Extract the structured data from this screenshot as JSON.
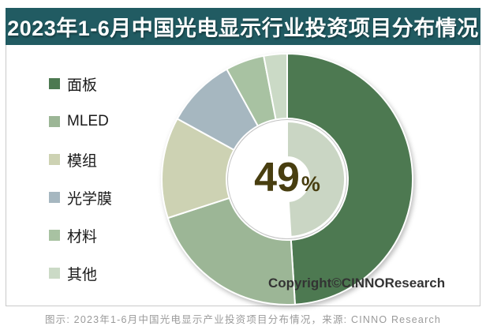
{
  "title": "2023年1-6月中国光电显示行业投资项目分布情况",
  "caption": "图示: 2023年1-6月中国光电显示产业投资项目分布情况，来源: CINNO Research",
  "copyright": "Copyright©CINNOResearch",
  "center_label": {
    "value": "49",
    "unit": "%"
  },
  "colors": {
    "title_bar": "#215b62",
    "title_text": "#ffffff",
    "card_border": "#c9c9c9",
    "center_text": "#483e10",
    "caption_text": "#9a9a9a",
    "copyright_text": "#333333",
    "segment_separator": "#ffffff"
  },
  "chart_data": {
    "type": "pie",
    "subtype": "donut",
    "title": "2023年1-6月中国光电显示行业投资项目分布情况",
    "categories": [
      "面板",
      "MLED",
      "模组",
      "光学膜",
      "材料",
      "其他"
    ],
    "values": [
      49,
      21,
      13,
      9,
      5,
      3
    ],
    "unit": "%",
    "colors": [
      "#4d7951",
      "#9cb696",
      "#cdd2b3",
      "#a6b7c0",
      "#a8c2a2",
      "#cbdac6"
    ],
    "legend_position": "left",
    "start_angle_deg": 0,
    "direction": "clockwise",
    "center_label": "49%",
    "labeled_segment": "面板",
    "inner_ring": {
      "share_of": "面板",
      "value": 49,
      "color": "#cad6c4"
    }
  }
}
